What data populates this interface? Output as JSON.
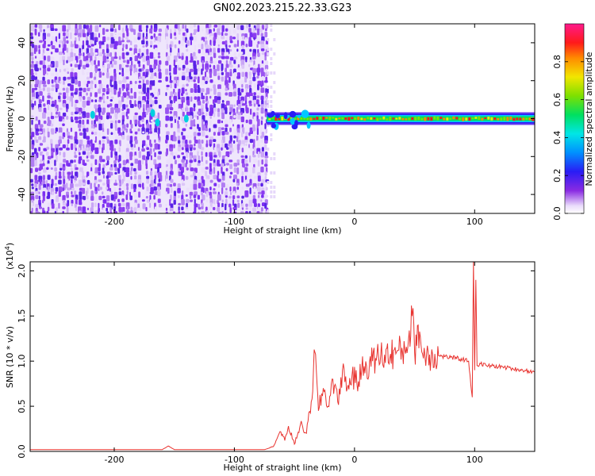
{
  "title": "GN02.2023.215.22.33.G23",
  "colors": {
    "snr_line": "#e8332f",
    "axis": "#000000",
    "background": "#ffffff"
  },
  "chart_data": [
    {
      "type": "heatmap",
      "title": "GN02.2023.215.22.33.G23",
      "xlabel": "Height of straight line (km)",
      "ylabel": "Frequency (Hz)",
      "xlim": [
        -270,
        150
      ],
      "ylim": [
        -50,
        50
      ],
      "xticks": [
        -200,
        -100,
        0,
        100
      ],
      "xtick_labels": [
        "-200",
        "-100",
        "0",
        "100"
      ],
      "yticks": [
        -40,
        -20,
        0,
        20,
        40
      ],
      "ytick_labels": [
        "-40",
        "-20",
        "0",
        "20",
        "40"
      ],
      "colorbar": {
        "label": "Normalized spectral amplitude",
        "range": [
          0.0,
          1.0
        ],
        "ticks": [
          0.0,
          0.2,
          0.4,
          0.6,
          0.8
        ],
        "tick_labels": [
          "0.0",
          "0.2",
          "0.4",
          "0.6",
          "0.8"
        ],
        "colormap": "rainbow"
      },
      "features": {
        "noise_region_x": [
          -270,
          -73
        ],
        "signal_band_x": [
          -73,
          150
        ],
        "signal_band_center_freq": 0,
        "gap_x": -160
      }
    },
    {
      "type": "line",
      "xlabel": "Height of straight line (km)",
      "ylabel": "SNR (10 * v/v)",
      "y_multiplier_label": "(x10",
      "y_multiplier_exponent": "4",
      "y_multiplier_close": ")",
      "xlim": [
        -270,
        150
      ],
      "ylim": [
        0.0,
        2.1
      ],
      "xticks": [
        -200,
        -100,
        0,
        100
      ],
      "xtick_labels": [
        "-200",
        "-100",
        "0",
        "100"
      ],
      "yticks": [
        0.0,
        0.5,
        1.0,
        1.5,
        2.0
      ],
      "ytick_labels": [
        "0.0",
        "0.5",
        "1.0",
        "1.5",
        "2.0"
      ],
      "series": [
        {
          "color": "#e8332f",
          "x": [
            -270,
            -250,
            -230,
            -210,
            -190,
            -170,
            -160,
            -155,
            -150,
            -130,
            -110,
            -90,
            -75,
            -68,
            -62,
            -58,
            -55,
            -50,
            -45,
            -40,
            -36,
            -33,
            -30,
            -26,
            -22,
            -18,
            -14,
            -10,
            -6,
            -2,
            2,
            6,
            10,
            15,
            20,
            25,
            30,
            35,
            40,
            45,
            48,
            50,
            53,
            56,
            60,
            65,
            70,
            75,
            80,
            85,
            90,
            95,
            98,
            99,
            100,
            101,
            102,
            105,
            110,
            120,
            130,
            140,
            150
          ],
          "y": [
            0.02,
            0.02,
            0.02,
            0.02,
            0.02,
            0.02,
            0.02,
            0.06,
            0.02,
            0.02,
            0.02,
            0.02,
            0.02,
            0.05,
            0.22,
            0.12,
            0.28,
            0.08,
            0.3,
            0.2,
            0.55,
            1.1,
            0.45,
            0.7,
            0.5,
            0.8,
            0.55,
            0.9,
            0.7,
            0.85,
            0.75,
            0.9,
            0.95,
            1.0,
            1.05,
            1.07,
            1.08,
            1.1,
            1.1,
            1.25,
            1.5,
            1.1,
            1.4,
            1.1,
            1.08,
            1.07,
            1.06,
            1.05,
            1.04,
            1.03,
            1.02,
            1.0,
            0.6,
            2.1,
            0.9,
            1.9,
            0.95,
            0.97,
            0.95,
            0.94,
            0.92,
            0.9,
            0.88
          ]
        }
      ]
    }
  ]
}
